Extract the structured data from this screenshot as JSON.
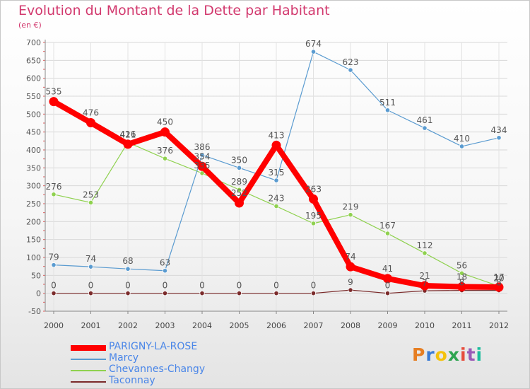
{
  "title": "Evolution du Montant de la Dette par Habitant",
  "subtitle": "(en €)",
  "logo_text": "Proxiti",
  "logo_colors": [
    "#e67e22",
    "#3a7bd5",
    "#f4c20d",
    "#2ea44f",
    "#e74c3c",
    "#9b59b6",
    "#1abc9c"
  ],
  "chart_data": {
    "type": "line",
    "title": "Evolution du Montant de la Dette par Habitant",
    "ylabel": "(en €)",
    "xlabel": "",
    "x": [
      "2000",
      "2001",
      "2002",
      "2003",
      "2004",
      "2005",
      "2006",
      "2007",
      "2008",
      "2009",
      "2010",
      "2011",
      "2012"
    ],
    "ylim": [
      -50,
      700
    ],
    "yticks": [
      "-50",
      "0",
      "50",
      "100",
      "150",
      "200",
      "250",
      "300",
      "350",
      "400",
      "450",
      "500",
      "550",
      "600",
      "650",
      "700"
    ],
    "grid": true,
    "legend_position": "bottom-left",
    "series": [
      {
        "name": "PARIGNY-LA-ROSE",
        "color": "#ff0000",
        "values": [
          535,
          476,
          416,
          450,
          354,
          252,
          413,
          263,
          74,
          41,
          21,
          18,
          17
        ],
        "labels": [
          "535",
          "476",
          "416",
          "450",
          "354",
          "252",
          "413",
          "263",
          "74",
          "41",
          "21",
          "18",
          "17"
        ]
      },
      {
        "name": "Marcy",
        "color": "#5a9bd0",
        "values": [
          79,
          74,
          68,
          63,
          386,
          350,
          315,
          674,
          623,
          511,
          461,
          410,
          434
        ],
        "labels": [
          "79",
          "74",
          "68",
          "63",
          "386",
          "350",
          "315",
          "674",
          "623",
          "511",
          "461",
          "410",
          "434"
        ]
      },
      {
        "name": "Chevannes-Changy",
        "color": "#8fd14f",
        "values": [
          276,
          253,
          421,
          376,
          335,
          289,
          243,
          195,
          219,
          167,
          112,
          56,
          20
        ],
        "labels": [
          "276",
          "253",
          "421",
          "376",
          "335",
          "289",
          "243",
          "195",
          "219",
          "167",
          "112",
          "56",
          "20"
        ]
      },
      {
        "name": "Taconnay",
        "color": "#7b2b2b",
        "values": [
          0,
          0,
          0,
          0,
          0,
          0,
          0,
          0,
          9,
          0,
          7,
          8,
          8
        ],
        "labels": [
          "0",
          "0",
          "0",
          "0",
          "0",
          "0",
          "0",
          "0",
          "9",
          "0",
          "7",
          "8",
          "8"
        ]
      }
    ]
  }
}
